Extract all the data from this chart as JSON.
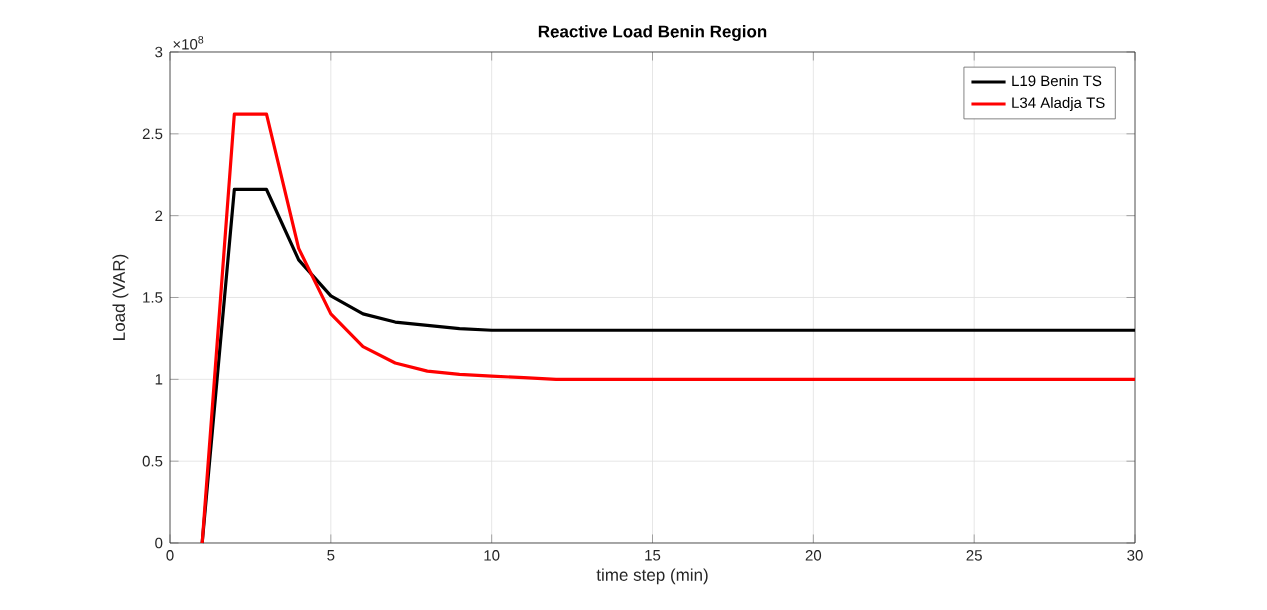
{
  "chart_data": {
    "type": "line",
    "title": "Reactive Load Benin Region",
    "xlabel": "time step (min)",
    "ylabel": "Load (VAR)",
    "annotations": [
      "×10$^{8}$"
    ],
    "x": [
      1,
      2,
      3,
      4,
      5,
      6,
      7,
      8,
      9,
      10,
      11,
      12,
      13,
      14,
      15,
      16,
      17,
      18,
      19,
      20,
      21,
      22,
      23,
      24,
      25,
      26,
      27,
      28,
      29,
      30
    ],
    "series": [
      {
        "name": "L19 Benin TS",
        "color": "#000000",
        "values": [
          0,
          2.16,
          2.16,
          1.73,
          1.51,
          1.4,
          1.35,
          1.33,
          1.31,
          1.3,
          1.3,
          1.3,
          1.3,
          1.3,
          1.3,
          1.3,
          1.3,
          1.3,
          1.3,
          1.3,
          1.3,
          1.3,
          1.3,
          1.3,
          1.3,
          1.3,
          1.3,
          1.3,
          1.3,
          1.3
        ]
      },
      {
        "name": "L34 Aladja TS",
        "color": "#ff0000",
        "values": [
          0,
          2.62,
          2.62,
          1.8,
          1.4,
          1.2,
          1.1,
          1.05,
          1.03,
          1.02,
          1.01,
          1.0,
          1.0,
          1.0,
          1.0,
          1.0,
          1.0,
          1.0,
          1.0,
          1.0,
          1.0,
          1.0,
          1.0,
          1.0,
          1.0,
          1.0,
          1.0,
          1.0,
          1.0,
          1.0
        ]
      }
    ],
    "xlim": [
      0,
      30
    ],
    "ylim": [
      0,
      3
    ],
    "xticks": [
      0,
      5,
      10,
      15,
      20,
      25,
      30
    ],
    "yticks": [
      0,
      0.5,
      1,
      1.5,
      2,
      2.5,
      3
    ],
    "grid": true,
    "legend": "top right",
    "marker": "none",
    "line_style": "solid"
  }
}
